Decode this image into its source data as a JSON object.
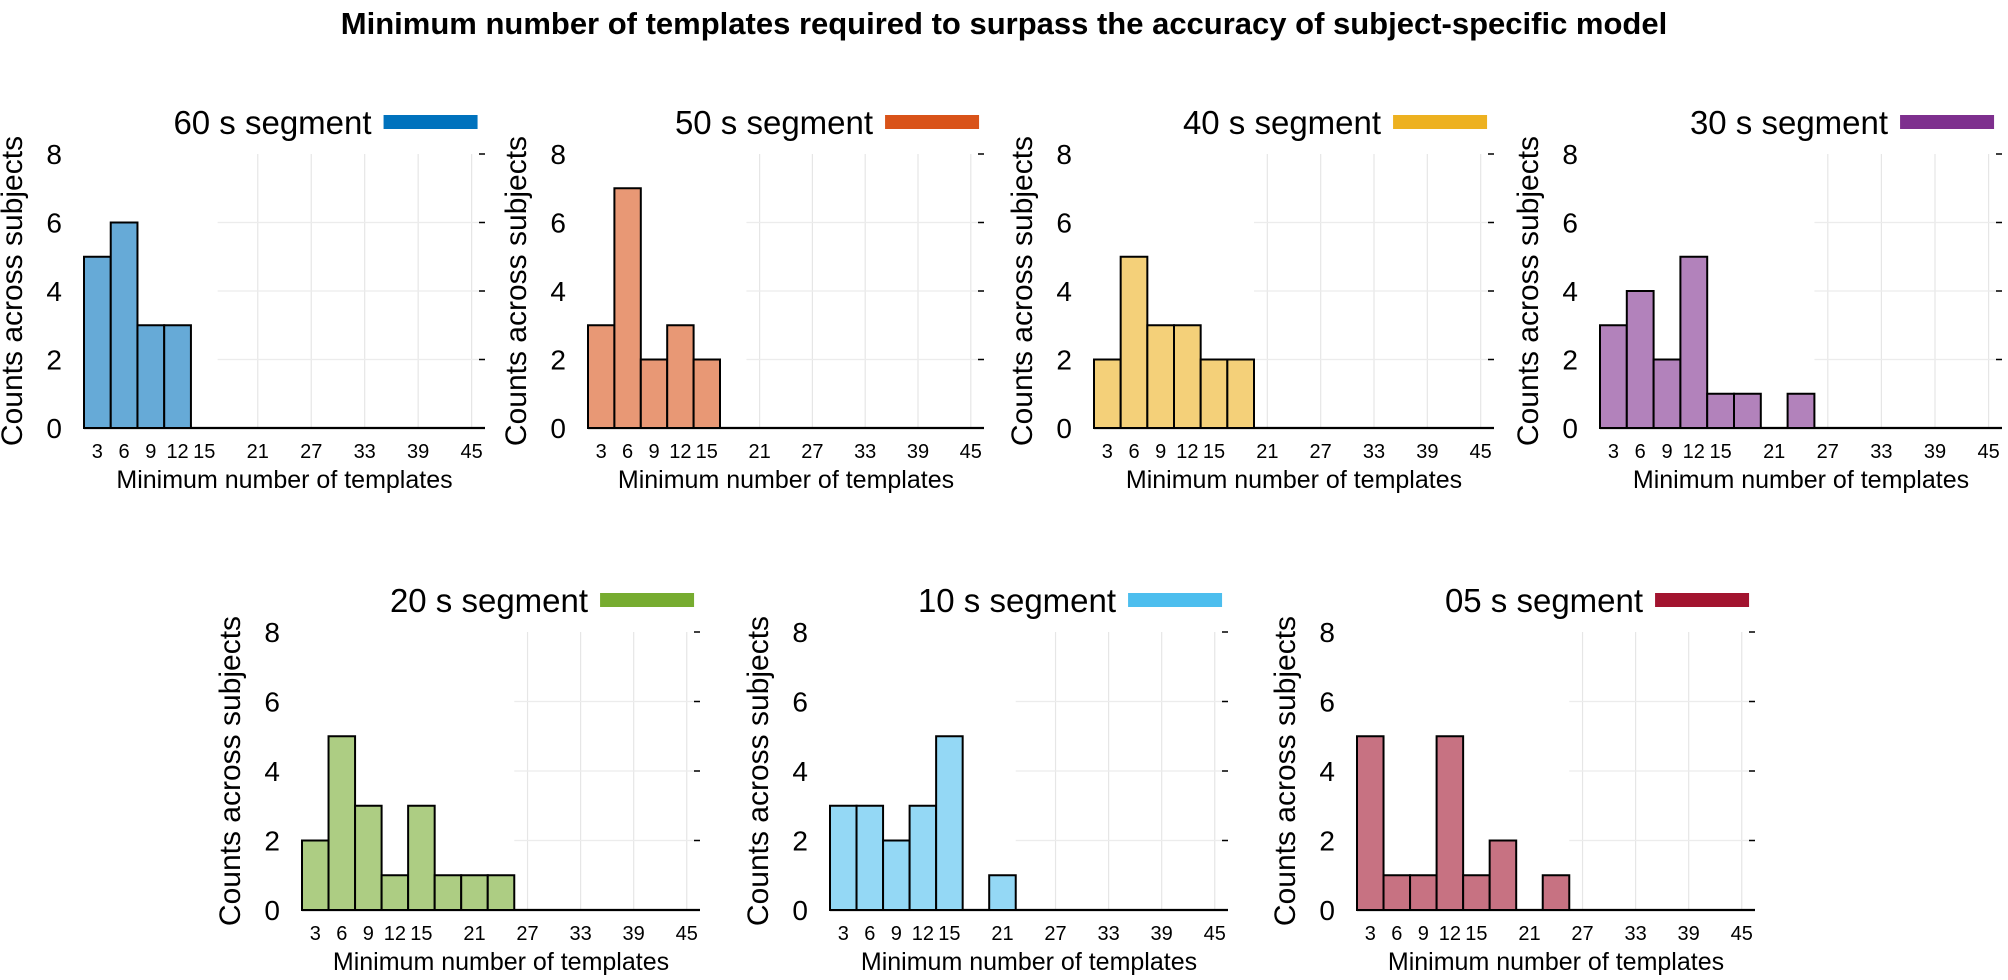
{
  "figure": {
    "title": "Minimum number of templates required to surpass the accuracy of subject-specific model"
  },
  "chart_data": [
    {
      "type": "bar",
      "title": "60 s segment",
      "color": "#0072BD",
      "xlabel": "Minimum number of templates",
      "ylabel": "Counts across subjects",
      "xticks": [
        3,
        6,
        9,
        12,
        15,
        21,
        27,
        33,
        39,
        45
      ],
      "yticks": [
        0,
        2,
        4,
        6,
        8
      ],
      "xlim": [
        1.5,
        46.5
      ],
      "ylim": [
        0,
        8
      ],
      "bin_width": 3,
      "bins": [
        3,
        6,
        9,
        12,
        15
      ],
      "values": [
        5,
        6,
        3,
        3,
        0
      ]
    },
    {
      "type": "bar",
      "title": "50 s segment",
      "color": "#D95319",
      "xlabel": "Minimum number of templates",
      "ylabel": "Counts across subjects",
      "xticks": [
        3,
        6,
        9,
        12,
        15,
        21,
        27,
        33,
        39,
        45
      ],
      "yticks": [
        0,
        2,
        4,
        6,
        8
      ],
      "xlim": [
        1.5,
        46.5
      ],
      "ylim": [
        0,
        8
      ],
      "bin_width": 3,
      "bins": [
        3,
        6,
        9,
        12,
        15,
        18
      ],
      "values": [
        3,
        7,
        2,
        3,
        2,
        0
      ]
    },
    {
      "type": "bar",
      "title": "40 s segment",
      "color": "#EDB120",
      "xlabel": "Minimum number of templates",
      "ylabel": "Counts across subjects",
      "xticks": [
        3,
        6,
        9,
        12,
        15,
        21,
        27,
        33,
        39,
        45
      ],
      "yticks": [
        0,
        2,
        4,
        6,
        8
      ],
      "xlim": [
        1.5,
        46.5
      ],
      "ylim": [
        0,
        8
      ],
      "bin_width": 3,
      "bins": [
        3,
        6,
        9,
        12,
        15,
        18
      ],
      "values": [
        2,
        5,
        3,
        3,
        2,
        2
      ]
    },
    {
      "type": "bar",
      "title": "30 s segment",
      "color": "#7E2F8E",
      "xlabel": "Minimum number of templates",
      "ylabel": "Counts across subjects",
      "xticks": [
        3,
        6,
        9,
        12,
        15,
        21,
        27,
        33,
        39,
        45
      ],
      "yticks": [
        0,
        2,
        4,
        6,
        8
      ],
      "xlim": [
        1.5,
        46.5
      ],
      "ylim": [
        0,
        8
      ],
      "bin_width": 3,
      "bins": [
        3,
        6,
        9,
        12,
        15,
        18,
        21,
        24
      ],
      "values": [
        3,
        4,
        2,
        5,
        1,
        1,
        0,
        1
      ]
    },
    {
      "type": "bar",
      "title": "20 s segment",
      "color": "#77AC30",
      "xlabel": "Minimum number of templates",
      "ylabel": "Counts across subjects",
      "xticks": [
        3,
        6,
        9,
        12,
        15,
        21,
        27,
        33,
        39,
        45
      ],
      "yticks": [
        0,
        2,
        4,
        6,
        8
      ],
      "xlim": [
        1.5,
        46.5
      ],
      "ylim": [
        0,
        8
      ],
      "bin_width": 3,
      "bins": [
        3,
        6,
        9,
        12,
        15,
        18,
        21,
        24
      ],
      "values": [
        2,
        5,
        3,
        1,
        3,
        1,
        1,
        1
      ]
    },
    {
      "type": "bar",
      "title": "10 s segment",
      "color": "#4DBEEE",
      "xlabel": "Minimum number of templates",
      "ylabel": "Counts across subjects",
      "xticks": [
        3,
        6,
        9,
        12,
        15,
        21,
        27,
        33,
        39,
        45
      ],
      "yticks": [
        0,
        2,
        4,
        6,
        8
      ],
      "xlim": [
        1.5,
        46.5
      ],
      "ylim": [
        0,
        8
      ],
      "bin_width": 3,
      "bins": [
        3,
        6,
        9,
        12,
        15,
        18,
        21
      ],
      "values": [
        3,
        3,
        2,
        3,
        5,
        0,
        1
      ]
    },
    {
      "type": "bar",
      "title": "05 s segment",
      "color": "#A2142F",
      "xlabel": "Minimum number of templates",
      "ylabel": "Counts across subjects",
      "xticks": [
        3,
        6,
        9,
        12,
        15,
        21,
        27,
        33,
        39,
        45
      ],
      "yticks": [
        0,
        2,
        4,
        6,
        8
      ],
      "xlim": [
        1.5,
        46.5
      ],
      "ylim": [
        0,
        8
      ],
      "bin_width": 3,
      "bins": [
        3,
        6,
        9,
        12,
        15,
        18,
        21,
        24
      ],
      "values": [
        5,
        1,
        1,
        5,
        1,
        2,
        0,
        1
      ]
    }
  ]
}
